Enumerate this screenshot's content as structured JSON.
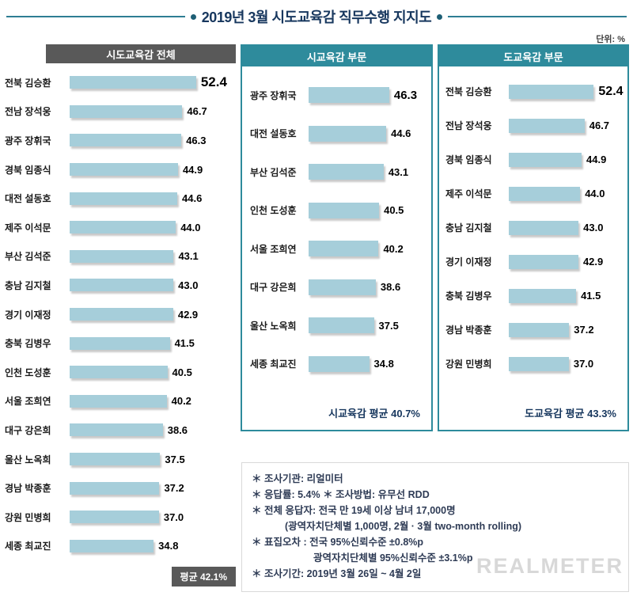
{
  "title": "2019년 3월 시도교육감 직무수행 지지도",
  "unit_label": "단위: %",
  "watermark": "REALMETER",
  "colors": {
    "teal_accent": "#2E8B9C",
    "dark_gray": "#595959",
    "bar_fill": "#A6CEDA",
    "title_navy": "#17375E"
  },
  "chart_data": [
    {
      "type": "bar",
      "orientation": "horizontal",
      "title": "시도교육감 전체",
      "unit": "%",
      "xlim": [
        0,
        60
      ],
      "categories": [
        "전북 김승환",
        "전남 장석웅",
        "광주 장휘국",
        "경북 임종식",
        "대전 설동호",
        "제주 이석문",
        "부산 김석준",
        "충남 김지철",
        "경기 이재정",
        "충북 김병우",
        "인천 도성훈",
        "서울 조희연",
        "대구 강은희",
        "울산 노옥희",
        "경남 박종훈",
        "강원 민병희",
        "세종 최교진"
      ],
      "values": [
        52.4,
        46.7,
        46.3,
        44.9,
        44.6,
        44.0,
        43.1,
        43.0,
        42.9,
        41.5,
        40.5,
        40.2,
        38.6,
        37.5,
        37.2,
        37.0,
        34.8
      ],
      "average_label": "평균 42.1%"
    },
    {
      "type": "bar",
      "orientation": "horizontal",
      "title": "시교육감 부문",
      "unit": "%",
      "xlim": [
        0,
        60
      ],
      "categories": [
        "광주 장휘국",
        "대전 설동호",
        "부산 김석준",
        "인천 도성훈",
        "서울 조희연",
        "대구 강은희",
        "울산 노옥희",
        "세종 최교진"
      ],
      "values": [
        46.3,
        44.6,
        43.1,
        40.5,
        40.2,
        38.6,
        37.5,
        34.8
      ],
      "average_label": "시교육감 평균 40.7%"
    },
    {
      "type": "bar",
      "orientation": "horizontal",
      "title": "도교육감 부문",
      "unit": "%",
      "xlim": [
        0,
        60
      ],
      "categories": [
        "전북 김승환",
        "전남 장석웅",
        "경북 임종식",
        "제주 이석문",
        "충남 김지철",
        "경기 이재정",
        "충북 김병우",
        "경남 박종훈",
        "강원 민병희"
      ],
      "values": [
        52.4,
        46.7,
        44.9,
        44.0,
        43.0,
        42.9,
        41.5,
        37.2,
        37.0
      ],
      "average_label": "도교육감 평균 43.3%"
    }
  ],
  "notes": {
    "lines": [
      {
        "text": "＊ 조사기관: 리얼미터",
        "indent": 0
      },
      {
        "text": "＊ 응답률: 5.4%  ＊ 조사방법: 유무선 RDD",
        "indent": 0
      },
      {
        "text": "＊ 전체 응답자: 전국 만 19세 이상 남녀 17,000명",
        "indent": 0
      },
      {
        "text": "(광역자치단체별 1,000명, 2월 · 3월 two-month rolling)",
        "indent": 1
      },
      {
        "text": "＊ 표집오차 : 전국 95%신뢰수준 ±0.8%p",
        "indent": 0
      },
      {
        "text": "광역자치단체별 95%신뢰수준 ±3.1%p",
        "indent": 2
      },
      {
        "text": "＊ 조사기간: 2019년 3월 26일 ~ 4월 2일",
        "indent": 0
      }
    ]
  }
}
